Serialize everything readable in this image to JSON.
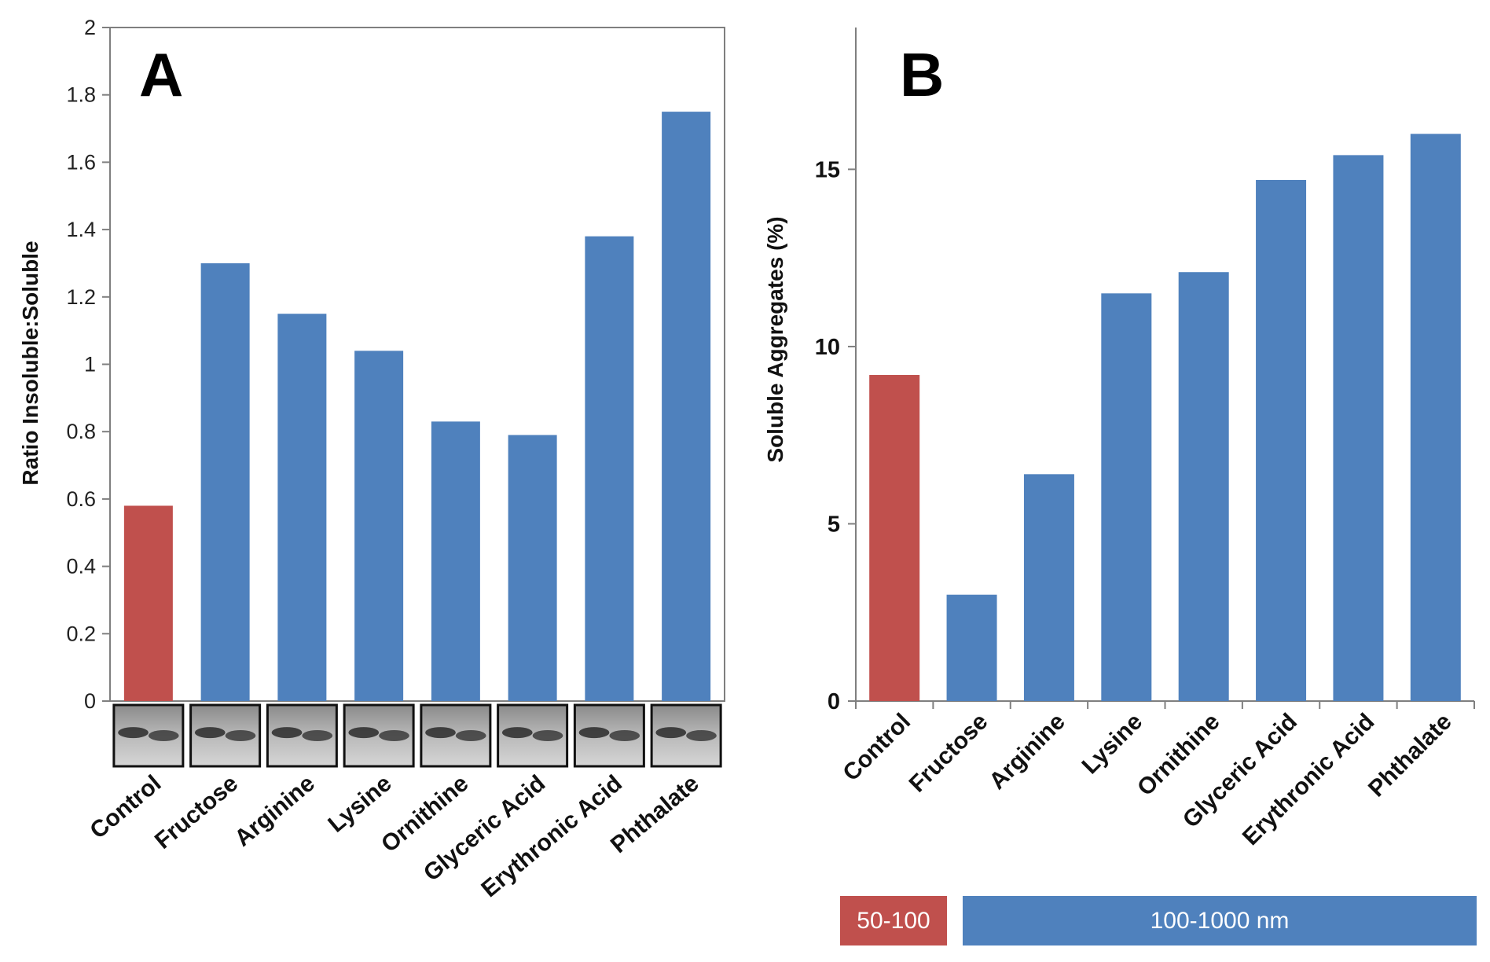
{
  "colors": {
    "control": "#C0504D",
    "treatment": "#4F81BD",
    "axis": "#7f7f7f"
  },
  "chart_data": [
    {
      "panel": "A",
      "type": "bar",
      "ylabel": "Ratio Insoluble:Soluble",
      "ylim": [
        0,
        2
      ],
      "yticks": [
        "0",
        "0.2",
        "0.4",
        "0.6",
        "0.8",
        "1",
        "1.2",
        "1.4",
        "1.6",
        "1.8",
        "2"
      ],
      "categories": [
        "Control",
        "Fructose",
        "Arginine",
        "Lysine",
        "Ornithine",
        "Glyceric Acid",
        "Erythronic Acid",
        "Phthalate"
      ],
      "values": [
        0.58,
        1.3,
        1.15,
        1.04,
        0.83,
        0.79,
        1.38,
        1.75
      ],
      "gel_inset": true
    },
    {
      "panel": "B",
      "type": "bar",
      "ylabel": "Soluble Aggregates (%)",
      "ylim": [
        0,
        19
      ],
      "yticks": [
        "0",
        "5",
        "10",
        "15"
      ],
      "categories": [
        "Control",
        "Fructose",
        "Arginine",
        "Lysine",
        "Ornithine",
        "Glyceric Acid",
        "Erythronic Acid",
        "Phthalate"
      ],
      "values": [
        9.2,
        3.0,
        6.4,
        11.5,
        12.1,
        14.7,
        15.4,
        16.0
      ],
      "legend": [
        "50-100",
        "100-1000 nm"
      ]
    }
  ]
}
